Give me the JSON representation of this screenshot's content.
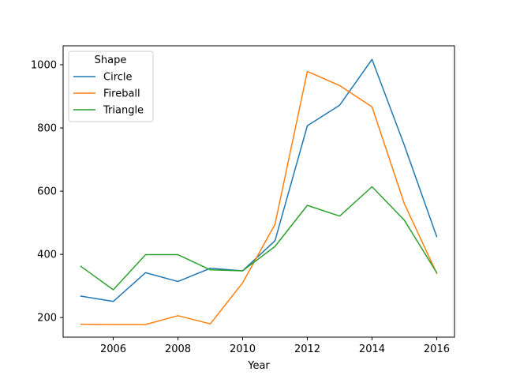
{
  "chart_data": {
    "type": "line",
    "title": "",
    "xlabel": "Year",
    "ylabel": "",
    "xlim": [
      2004.45,
      2016.55
    ],
    "ylim": [
      138,
      1060
    ],
    "x_ticks": [
      2006,
      2008,
      2010,
      2012,
      2014,
      2016
    ],
    "y_ticks": [
      200,
      400,
      600,
      800,
      1000
    ],
    "grid": false,
    "legend": {
      "title": "Shape",
      "placement": "top-left"
    },
    "x": [
      2005,
      2006,
      2007,
      2008,
      2009,
      2010,
      2011,
      2012,
      2013,
      2014,
      2015,
      2016
    ],
    "series": [
      {
        "name": "Circle",
        "color": "#1f77b4",
        "values": [
          268,
          251,
          342,
          314,
          356,
          348,
          443,
          807,
          872,
          1017,
          745,
          456
        ]
      },
      {
        "name": "Fireball",
        "color": "#ff7f0e",
        "values": [
          179,
          178,
          178,
          206,
          180,
          310,
          495,
          979,
          934,
          867,
          560,
          340
        ]
      },
      {
        "name": "Triangle",
        "color": "#2ca02c",
        "values": [
          362,
          288,
          399,
          399,
          351,
          348,
          425,
          555,
          521,
          614,
          508,
          342
        ]
      }
    ]
  }
}
